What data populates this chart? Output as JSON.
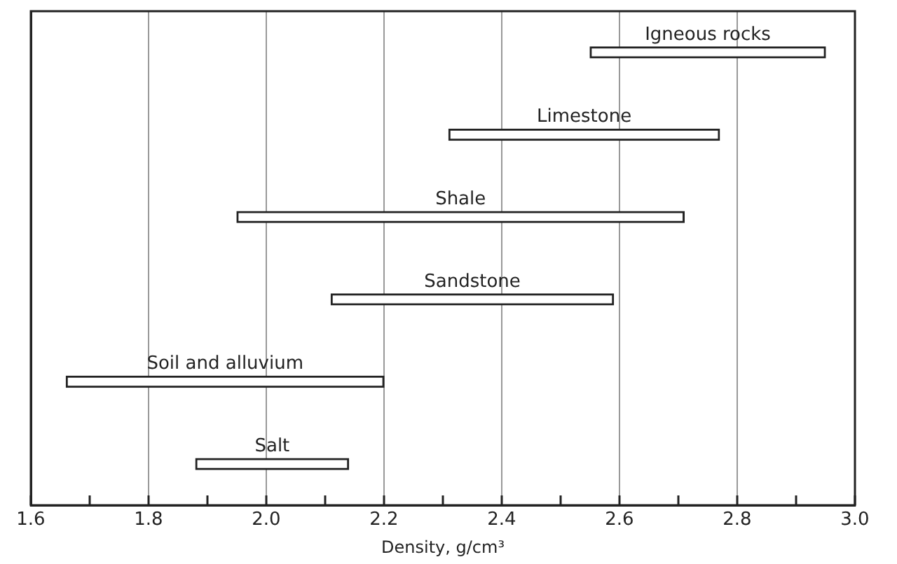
{
  "chart_data": {
    "type": "bar",
    "orientation": "horizontal",
    "xlabel": "Density, g/cm³",
    "categories": [
      "Igneous rocks",
      "Limestone",
      "Shale",
      "Sandstone",
      "Soil and alluvium",
      "Salt"
    ],
    "base": [
      2.55,
      2.31,
      1.95,
      2.11,
      1.66,
      1.88
    ],
    "values": [
      0.4,
      0.46,
      0.76,
      0.48,
      0.54,
      0.26
    ],
    "color": "#ffffff",
    "xlim": [
      1.6,
      3.0
    ],
    "xticks": [
      1.6,
      {
        "value": 1.7,
        "label": null
      },
      1.8,
      {
        "value": 1.9,
        "label": null
      },
      {
        "value": 2,
        "label": "2.0"
      },
      {
        "value": 2.1,
        "label": null
      },
      2.2,
      {
        "value": 2.3,
        "label": null
      },
      2.4,
      {
        "value": 2.5,
        "label": null
      },
      2.6,
      {
        "value": 2.7,
        "label": null
      },
      2.8,
      {
        "value": 2.9,
        "label": null
      },
      {
        "value": 3,
        "label": "3.0"
      }
    ],
    "grid": "x",
    "tick_labels": "x",
    "legend": false
  }
}
